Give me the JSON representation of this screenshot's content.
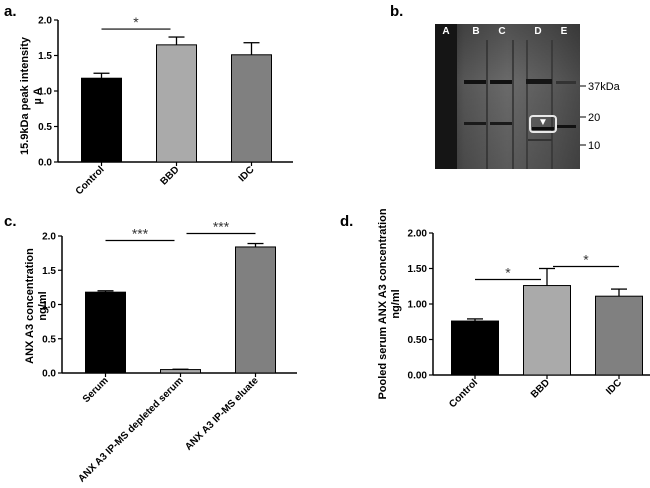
{
  "chart_data": [
    {
      "panel": "a.",
      "type": "bar",
      "categories": [
        "Control",
        "BBD",
        "IDC"
      ],
      "values": [
        1.18,
        1.65,
        1.51
      ],
      "errors": [
        0.07,
        0.11,
        0.17
      ],
      "colors": [
        "#000000",
        "#aaaaaa",
        "#808080"
      ],
      "ylabel_line1": "15.9kDa peak intensity",
      "ylabel_line2": "µ A",
      "ylim": [
        0,
        2.0
      ],
      "yticks": [
        0,
        0.5,
        1.0,
        1.5,
        2.0
      ],
      "ytick_labels": [
        "0.0",
        "0.5",
        "1.0",
        "1.5",
        "2.0"
      ],
      "significance": [
        {
          "from": 0,
          "to": 1,
          "label": "*"
        }
      ]
    },
    {
      "panel": "c.",
      "type": "bar",
      "categories": [
        "Serum",
        "ANX A3 IP-MS depleted serum",
        "ANX A3 IP-MS eluate"
      ],
      "values": [
        1.18,
        0.05,
        1.84
      ],
      "errors": [
        0.02,
        0.005,
        0.05
      ],
      "colors": [
        "#000000",
        "#aaaaaa",
        "#808080"
      ],
      "ylabel_line1": "ANX A3 concentration",
      "ylabel_line2": "ng/ml",
      "ylim": [
        0,
        2.0
      ],
      "yticks": [
        0,
        0.5,
        1.0,
        1.5,
        2.0
      ],
      "ytick_labels": [
        "0.0",
        "0.5",
        "1.0",
        "1.5",
        "2.0"
      ],
      "significance": [
        {
          "from": 0,
          "to": 1,
          "label": "***"
        },
        {
          "from": 1,
          "to": 2,
          "label": "***"
        }
      ]
    },
    {
      "panel": "d.",
      "type": "bar",
      "categories": [
        "Control",
        "BBD",
        "IDC"
      ],
      "values": [
        0.76,
        1.26,
        1.11
      ],
      "errors": [
        0.03,
        0.24,
        0.1
      ],
      "colors": [
        "#000000",
        "#aaaaaa",
        "#808080"
      ],
      "ylabel_line1": "Pooled serum ANX A3 concentration",
      "ylabel_line2": "ng/ml",
      "ylim": [
        0,
        2.0
      ],
      "yticks": [
        0,
        0.5,
        1.0,
        1.5,
        2.0
      ],
      "ytick_labels": [
        "0.00",
        "0.50",
        "1.00",
        "1.50",
        "2.00"
      ],
      "significance": [
        {
          "from": 0,
          "to": 1,
          "label": "*"
        },
        {
          "from": 1,
          "to": 2,
          "label": "*"
        }
      ]
    }
  ],
  "blot": {
    "panel": "b.",
    "lanes": [
      "A",
      "B",
      "C",
      "D",
      "E"
    ],
    "markers": [
      "37kDa",
      "20",
      "10"
    ],
    "arrow": "▼"
  }
}
